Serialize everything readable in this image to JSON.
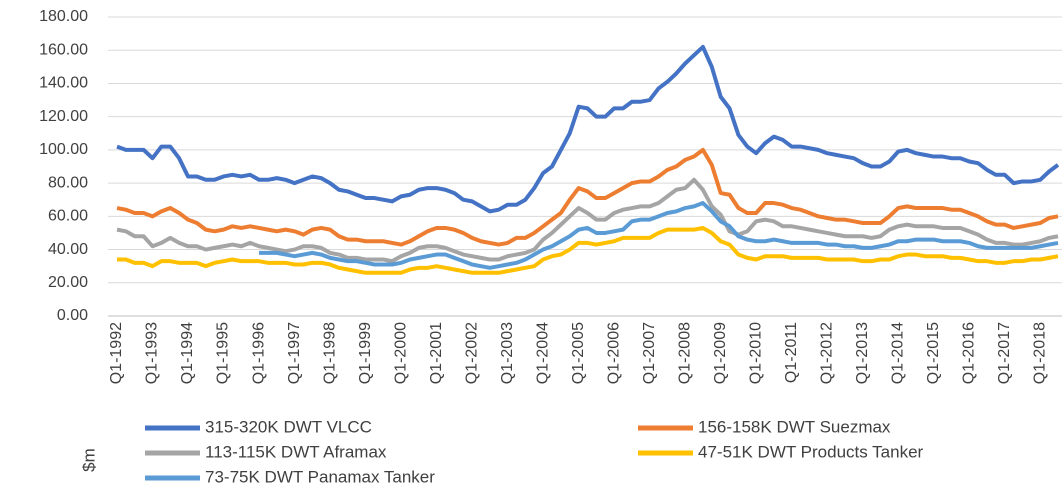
{
  "chart_data": {
    "type": "line",
    "y_label": "$m",
    "categories": [
      "Q1-1992",
      null,
      null,
      null,
      "Q1-1993",
      null,
      null,
      null,
      "Q1-1994",
      null,
      null,
      null,
      "Q1-1995",
      null,
      null,
      null,
      "Q1-1996",
      null,
      null,
      null,
      "Q1-1997",
      null,
      null,
      null,
      "Q1-1998",
      null,
      null,
      null,
      "Q1-1999",
      null,
      null,
      null,
      "Q1-2000",
      null,
      null,
      null,
      "Q1-2001",
      null,
      null,
      null,
      "Q1-2002",
      null,
      null,
      null,
      "Q1-2003",
      null,
      null,
      null,
      "Q1-2004",
      null,
      null,
      null,
      "Q1-2005",
      null,
      null,
      null,
      "Q1-2006",
      null,
      null,
      null,
      "Q1-2007",
      null,
      null,
      null,
      "Q1-2008",
      null,
      null,
      null,
      "Q1-2009",
      null,
      null,
      null,
      "Q1-2010",
      null,
      null,
      null,
      "Q1-2011",
      null,
      null,
      null,
      "Q1-2012",
      null,
      null,
      null,
      "Q1-2013",
      null,
      null,
      null,
      "Q1-2014",
      null,
      null,
      null,
      "Q1-2015",
      null,
      null,
      null,
      "Q1-2016",
      null,
      null,
      null,
      "Q1-2017",
      null,
      null,
      null,
      "Q1-2018",
      null,
      null
    ],
    "series": [
      {
        "name": "315-320K DWT VLCC",
        "color": "#4472c4",
        "values": [
          102,
          100,
          100,
          100,
          95,
          102,
          102,
          95,
          84,
          84,
          82,
          82,
          84,
          85,
          84,
          85,
          82,
          82,
          83,
          82,
          80,
          82,
          84,
          83,
          80,
          76,
          75,
          73,
          71,
          71,
          70,
          69,
          72,
          73,
          76,
          77,
          77,
          76,
          74,
          70,
          69,
          66,
          63,
          64,
          67,
          67,
          70,
          77,
          86,
          90,
          100,
          110,
          126,
          125,
          120,
          120,
          125,
          125,
          129,
          129,
          130,
          137,
          141,
          146,
          152,
          157,
          162,
          150,
          132,
          125,
          109,
          102,
          98,
          104,
          108,
          106,
          102,
          102,
          101,
          100,
          98,
          97,
          96,
          95,
          92,
          90,
          90,
          93,
          99,
          100,
          98,
          97,
          96,
          96,
          95,
          95,
          93,
          92,
          88,
          85,
          85,
          80,
          81,
          81,
          82,
          87,
          91
        ]
      },
      {
        "name": "156-158K DWT Suezmax",
        "color": "#ed7d31",
        "values": [
          65,
          64,
          62,
          62,
          60,
          63,
          65,
          62,
          58,
          56,
          52,
          51,
          52,
          54,
          53,
          54,
          53,
          52,
          51,
          52,
          51,
          49,
          52,
          53,
          52,
          48,
          46,
          46,
          45,
          45,
          45,
          44,
          43,
          45,
          48,
          51,
          53,
          53,
          52,
          50,
          47,
          45,
          44,
          43,
          44,
          47,
          47,
          50,
          54,
          58,
          62,
          70,
          77,
          75,
          71,
          71,
          74,
          77,
          80,
          81,
          81,
          84,
          88,
          90,
          94,
          96,
          100,
          91,
          74,
          73,
          65,
          62,
          62,
          68,
          68,
          67,
          65,
          64,
          62,
          60,
          59,
          58,
          58,
          57,
          56,
          56,
          56,
          60,
          65,
          66,
          65,
          65,
          65,
          65,
          64,
          64,
          62,
          60,
          57,
          55,
          55,
          53,
          54,
          55,
          56,
          59,
          60
        ]
      },
      {
        "name": "113-115K DWT Aframax",
        "color": "#a5a5a5",
        "values": [
          52,
          51,
          48,
          48,
          42,
          44,
          47,
          44,
          42,
          42,
          40,
          41,
          42,
          43,
          42,
          44,
          42,
          41,
          40,
          39,
          40,
          42,
          42,
          41,
          38,
          37,
          35,
          35,
          34,
          34,
          34,
          33,
          36,
          38,
          41,
          42,
          42,
          41,
          39,
          37,
          36,
          35,
          34,
          34,
          36,
          37,
          38,
          40,
          46,
          50,
          55,
          60,
          65,
          62,
          58,
          58,
          62,
          64,
          65,
          66,
          66,
          68,
          72,
          76,
          77,
          82,
          76,
          66,
          61,
          51,
          49,
          51,
          57,
          58,
          57,
          54,
          54,
          53,
          52,
          51,
          50,
          49,
          48,
          48,
          48,
          47,
          48,
          52,
          54,
          55,
          54,
          54,
          54,
          53,
          53,
          53,
          51,
          49,
          46,
          44,
          44,
          43,
          43,
          44,
          45,
          47,
          48
        ]
      },
      {
        "name": "47-51K DWT Products Tanker",
        "color": "#ffc000",
        "values": [
          34,
          34,
          32,
          32,
          30,
          33,
          33,
          32,
          32,
          32,
          30,
          32,
          33,
          34,
          33,
          33,
          33,
          32,
          32,
          32,
          31,
          31,
          32,
          32,
          31,
          29,
          28,
          27,
          26,
          26,
          26,
          26,
          26,
          28,
          29,
          29,
          30,
          29,
          28,
          27,
          26,
          26,
          26,
          26,
          27,
          28,
          29,
          30,
          34,
          36,
          37,
          40,
          44,
          44,
          43,
          44,
          45,
          47,
          47,
          47,
          47,
          50,
          52,
          52,
          52,
          52,
          53,
          50,
          45,
          43,
          37,
          35,
          34,
          36,
          36,
          36,
          35,
          35,
          35,
          35,
          34,
          34,
          34,
          34,
          33,
          33,
          34,
          34,
          36,
          37,
          37,
          36,
          36,
          36,
          35,
          35,
          34,
          33,
          33,
          32,
          32,
          33,
          33,
          34,
          34,
          35,
          36
        ]
      },
      {
        "name": "73-75K DWT Panamax Tanker",
        "color": "#5b9bd5",
        "values": [
          null,
          null,
          null,
          null,
          null,
          null,
          null,
          null,
          null,
          null,
          null,
          null,
          null,
          null,
          null,
          null,
          38,
          38,
          38,
          37,
          36,
          37,
          38,
          37,
          35,
          34,
          33,
          33,
          32,
          31,
          31,
          31,
          32,
          34,
          35,
          36,
          37,
          37,
          35,
          33,
          31,
          30,
          29,
          30,
          31,
          32,
          34,
          37,
          40,
          42,
          45,
          48,
          52,
          53,
          50,
          50,
          51,
          52,
          57,
          58,
          58,
          60,
          62,
          63,
          65,
          66,
          68,
          63,
          57,
          54,
          48,
          46,
          45,
          45,
          46,
          45,
          44,
          44,
          44,
          44,
          43,
          43,
          42,
          42,
          41,
          41,
          42,
          43,
          45,
          45,
          46,
          46,
          46,
          45,
          45,
          45,
          44,
          42,
          41,
          41,
          41,
          41,
          41,
          41,
          42,
          43,
          44
        ]
      }
    ],
    "ylim": [
      0,
      180
    ],
    "yticks": [
      {
        "value": 0,
        "label": "0.00"
      },
      {
        "value": 20,
        "label": "20.00"
      },
      {
        "value": 40,
        "label": "40.00"
      },
      {
        "value": 60,
        "label": "60.00"
      },
      {
        "value": 80,
        "label": "80.00"
      },
      {
        "value": 100,
        "label": "100.00"
      },
      {
        "value": 120,
        "label": "120.00"
      },
      {
        "value": 140,
        "label": "140.00"
      },
      {
        "value": 160,
        "label": "160.00"
      },
      {
        "value": 180,
        "label": "180.00"
      }
    ],
    "grid": true,
    "legend": "bottom"
  }
}
